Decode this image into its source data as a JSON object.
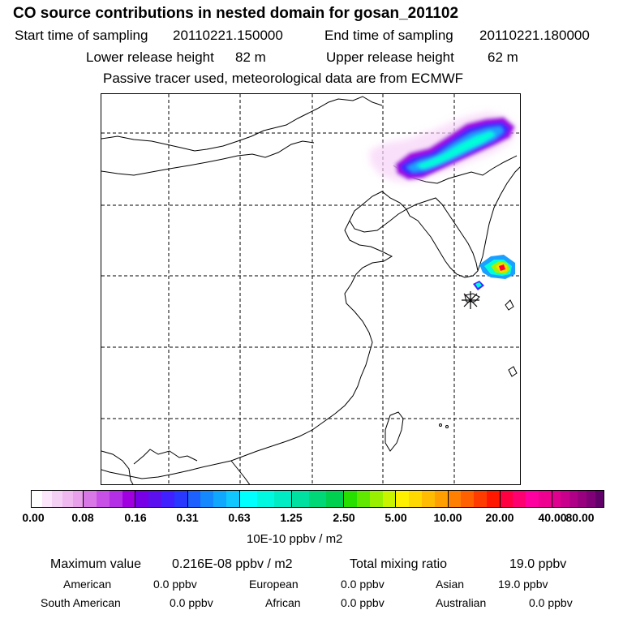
{
  "header": {
    "title": "CO  source contributions in nested domain for gosan_201102",
    "start_label": "Start time of sampling",
    "start_value": "20110221.150000",
    "end_label": "End time of sampling",
    "end_value": "20110221.180000",
    "lower_label": "Lower release height",
    "lower_value": "82 m",
    "upper_label": "Upper release height",
    "upper_value": "62 m",
    "note": "Passive tracer used, meteorological data are from ECMWF"
  },
  "map": {
    "grid_style": "dashed",
    "release_site_marker": "star",
    "plume_colors": [
      "#f7d2f7",
      "#e58be8",
      "#a800e0",
      "#3a28ff",
      "#1aa0ff",
      "#00ffd8",
      "#00d8a0",
      "#a8f000",
      "#ffd800",
      "#ff7000",
      "#ff0030",
      "#ff0090"
    ]
  },
  "colorbar": {
    "ticks": [
      "0.00",
      "0.08",
      "0.16",
      "0.31",
      "0.63",
      "1.25",
      "2.50",
      "5.00",
      "10.00",
      "20.00",
      "40.00",
      "80.00"
    ],
    "blocks": [
      [
        "#ffffff",
        "#fbe6fb",
        "#f5d0f5",
        "#efb8ef",
        "#e8a0ea"
      ],
      [
        "#d878e6",
        "#c850e6",
        "#b42ee6",
        "#a000e0"
      ],
      [
        "#7800e6",
        "#5c10f0",
        "#4020ff",
        "#2838ff"
      ],
      [
        "#1c60ff",
        "#1488ff",
        "#10a8ff",
        "#10c8ff"
      ],
      [
        "#00ffff",
        "#00f8e0",
        "#00ecc4"
      ],
      [
        "#00e0a0",
        "#00d878",
        "#00d050"
      ],
      [
        "#28e000",
        "#60e800",
        "#98f000",
        "#c8f400"
      ],
      [
        "#fff000",
        "#ffd800",
        "#ffbc00",
        "#ffa000"
      ],
      [
        "#ff8000",
        "#ff6000",
        "#ff3c00",
        "#ff1800"
      ],
      [
        "#ff0040",
        "#ff0070",
        "#ff00a0",
        "#f00090"
      ],
      [
        "#e00090",
        "#c8008c",
        "#b00088",
        "#980080",
        "#800078",
        "#600068"
      ]
    ],
    "unit": "10E-10 ppbv / m2"
  },
  "summary": {
    "max_label": "Maximum value",
    "max_value": "0.216E-08 ppbv / m2",
    "total_label": "Total mixing ratio",
    "total_value": "19.0 ppbv",
    "regions": [
      {
        "name": "American",
        "value": "0.0 ppbv"
      },
      {
        "name": "European",
        "value": "0.0 ppbv"
      },
      {
        "name": "Asian",
        "value": "19.0 ppbv"
      },
      {
        "name": "South American",
        "value": "0.0 ppbv"
      },
      {
        "name": "African",
        "value": "0.0 ppbv"
      },
      {
        "name": "Australian",
        "value": "0.0 ppbv"
      }
    ]
  }
}
